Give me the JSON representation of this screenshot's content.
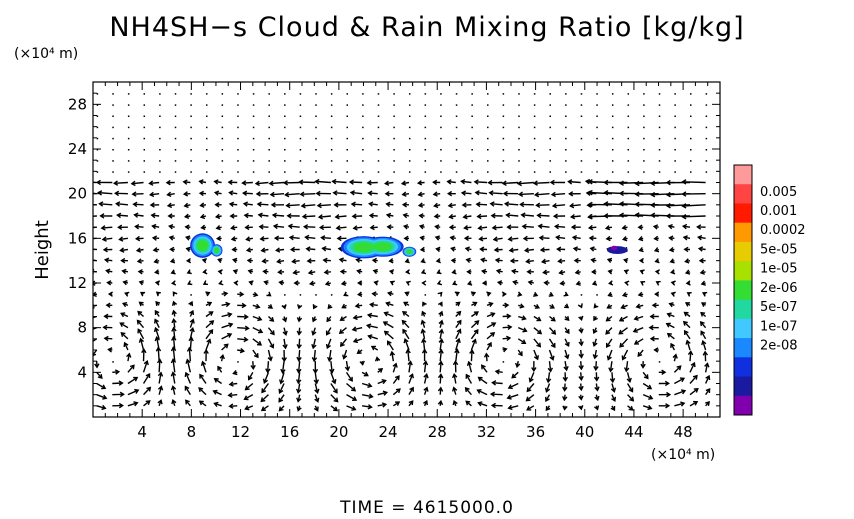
{
  "chart_data": {
    "type": "vector-field-contour",
    "title": "NH4SH−s Cloud & Rain Mixing Ratio [kg/kg]",
    "ylabel": "Height",
    "x_unit": "(×10⁴ m)",
    "y_unit": "(×10⁴ m)",
    "xlim": [
      0,
      51
    ],
    "ylim": [
      0,
      30
    ],
    "x_ticks": [
      4,
      8,
      12,
      16,
      20,
      24,
      28,
      32,
      36,
      40,
      44,
      48
    ],
    "y_ticks": [
      4,
      8,
      12,
      16,
      20,
      24,
      28
    ],
    "colorbar": {
      "labels": [
        "0.005",
        "0.001",
        "0.0002",
        "5e-05",
        "1e-05",
        "2e-06",
        "5e-07",
        "1e-07",
        "2e-08"
      ],
      "colors": [
        "#ff9a9a",
        "#ff4444",
        "#ff1a00",
        "#ff9900",
        "#e6cc00",
        "#a8e000",
        "#33dd33",
        "#20d8a0",
        "#40c8ff",
        "#1a88ff",
        "#1030e0",
        "#1a1aa0",
        "#8000b0"
      ]
    },
    "cloud_regions": [
      {
        "x_range": [
          7.9,
          10.6
        ],
        "y_range": [
          14.2,
          16.4
        ],
        "max_level": "1e-05"
      },
      {
        "x_range": [
          20.0,
          26.2
        ],
        "y_range": [
          14.2,
          16.2
        ],
        "max_level": "1e-05"
      },
      {
        "x_range": [
          41.8,
          43.5
        ],
        "y_range": [
          14.6,
          15.3
        ],
        "max_level": "1e-07"
      }
    ]
  },
  "time_label": "TIME = 4615000.0"
}
